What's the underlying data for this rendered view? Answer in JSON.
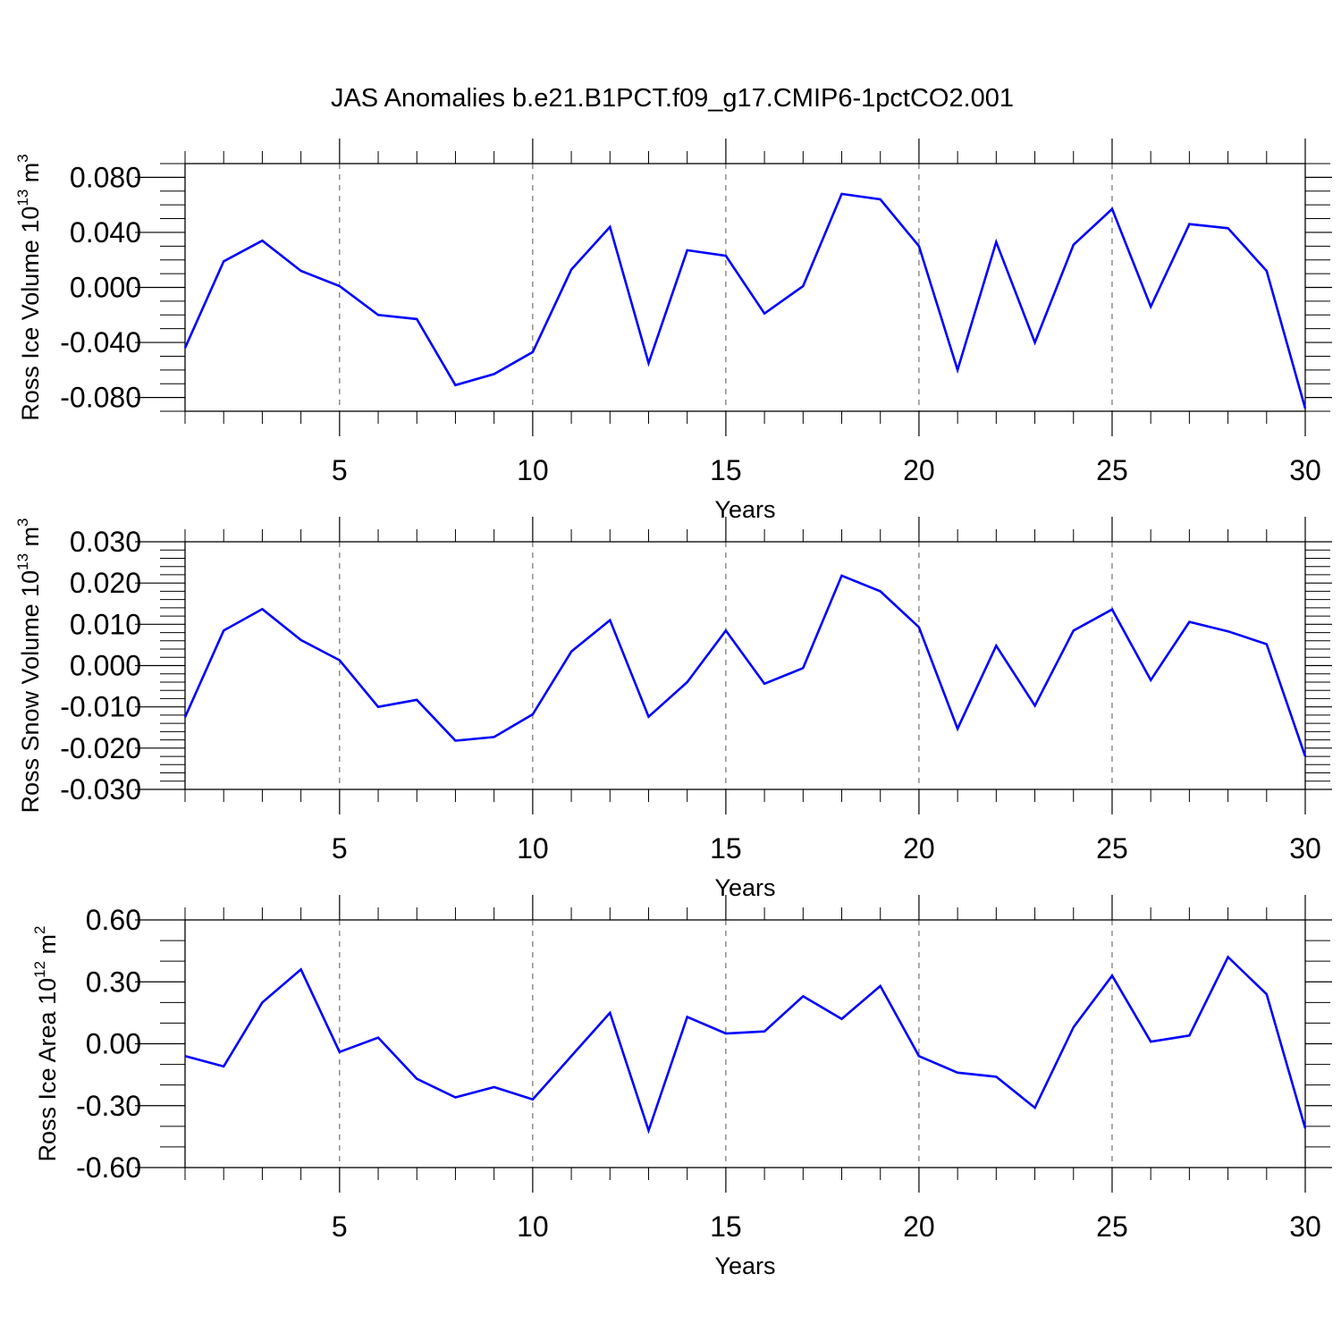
{
  "title": "JAS Anomalies b.e21.B1PCT.f09_g17.CMIP6-1pctCO2.001",
  "colors": {
    "line": "#0000ff",
    "axis": "#000000",
    "grid": "#555555"
  },
  "chart_data": [
    {
      "type": "line",
      "ylabel_main": "Ross Ice Volume 10",
      "ylabel_exp": "13",
      "ylabel_unit": " m",
      "ylabel_unit_exp": "3",
      "xlabel": "Years",
      "xlim": [
        1,
        30
      ],
      "ylim": [
        -0.09,
        0.09
      ],
      "x_ticks": [
        5,
        10,
        15,
        20,
        25,
        30
      ],
      "x_tick_labels": [
        "5",
        "10",
        "15",
        "20",
        "25",
        "30"
      ],
      "y_ticks": [
        -0.08,
        -0.04,
        0.0,
        0.04,
        0.08
      ],
      "y_tick_labels": [
        "-0.080",
        "-0.040",
        "0.000",
        "0.040",
        "0.080"
      ],
      "y_minor_step": 0.01,
      "grid": "vertical dashed at major x ticks",
      "x": [
        1,
        2,
        3,
        4,
        5,
        6,
        7,
        8,
        9,
        10,
        11,
        12,
        13,
        14,
        15,
        16,
        17,
        18,
        19,
        20,
        21,
        22,
        23,
        24,
        25,
        26,
        27,
        28,
        29,
        30
      ],
      "values": [
        -0.044,
        0.019,
        0.034,
        0.012,
        0.001,
        -0.02,
        -0.023,
        -0.071,
        -0.063,
        -0.047,
        0.013,
        0.044,
        -0.055,
        0.027,
        0.023,
        -0.019,
        0.001,
        0.068,
        0.064,
        0.03,
        -0.06,
        0.033,
        -0.04,
        0.031,
        0.057,
        -0.014,
        0.046,
        0.043,
        0.012,
        -0.088
      ]
    },
    {
      "type": "line",
      "ylabel_main": "Ross Snow Volume 10",
      "ylabel_exp": "13",
      "ylabel_unit": " m",
      "ylabel_unit_exp": "3",
      "xlabel": "Years",
      "xlim": [
        1,
        30
      ],
      "ylim": [
        -0.03,
        0.03
      ],
      "x_ticks": [
        5,
        10,
        15,
        20,
        25,
        30
      ],
      "x_tick_labels": [
        "5",
        "10",
        "15",
        "20",
        "25",
        "30"
      ],
      "y_ticks": [
        -0.03,
        -0.02,
        -0.01,
        0.0,
        0.01,
        0.02,
        0.03
      ],
      "y_tick_labels": [
        "-0.030",
        "-0.020",
        "-0.010",
        "0.000",
        "0.010",
        "0.020",
        "0.030"
      ],
      "y_minor_step": 0.002,
      "grid": "vertical dashed at major x ticks",
      "x": [
        1,
        2,
        3,
        4,
        5,
        6,
        7,
        8,
        9,
        10,
        11,
        12,
        13,
        14,
        15,
        16,
        17,
        18,
        19,
        20,
        21,
        22,
        23,
        24,
        25,
        26,
        27,
        28,
        29,
        30
      ],
      "values": [
        -0.0125,
        0.0085,
        0.0137,
        0.0062,
        0.0013,
        -0.01,
        -0.0083,
        -0.0182,
        -0.0173,
        -0.0118,
        0.0034,
        0.011,
        -0.0124,
        -0.004,
        0.0085,
        -0.0044,
        -0.0006,
        0.0218,
        0.018,
        0.0093,
        -0.0153,
        0.0048,
        -0.0097,
        0.0085,
        0.0136,
        -0.0035,
        0.0106,
        0.0083,
        0.0052,
        -0.022
      ]
    },
    {
      "type": "line",
      "ylabel_main": "Ross Ice Area 10",
      "ylabel_exp": "12",
      "ylabel_unit": " m",
      "ylabel_unit_exp": "2",
      "xlabel": "Years",
      "xlim": [
        1,
        30
      ],
      "ylim": [
        -0.6,
        0.6
      ],
      "x_ticks": [
        5,
        10,
        15,
        20,
        25,
        30
      ],
      "x_tick_labels": [
        "5",
        "10",
        "15",
        "20",
        "25",
        "30"
      ],
      "y_ticks": [
        -0.6,
        -0.3,
        0.0,
        0.3,
        0.6
      ],
      "y_tick_labels": [
        "-0.60",
        "-0.30",
        "0.00",
        "0.30",
        "0.60"
      ],
      "y_minor_step": 0.1,
      "grid": "vertical dashed at major x ticks",
      "x": [
        1,
        2,
        3,
        4,
        5,
        6,
        7,
        8,
        9,
        10,
        11,
        12,
        13,
        14,
        15,
        16,
        17,
        18,
        19,
        20,
        21,
        22,
        23,
        24,
        25,
        26,
        27,
        28,
        29,
        30
      ],
      "values": [
        -0.06,
        -0.11,
        0.2,
        0.36,
        -0.04,
        0.03,
        -0.17,
        -0.26,
        -0.21,
        -0.27,
        -0.06,
        0.15,
        -0.42,
        0.13,
        0.05,
        0.06,
        0.23,
        0.12,
        0.28,
        -0.06,
        -0.14,
        -0.16,
        -0.31,
        0.08,
        0.33,
        0.01,
        0.04,
        0.42,
        0.24,
        -0.41
      ]
    }
  ]
}
